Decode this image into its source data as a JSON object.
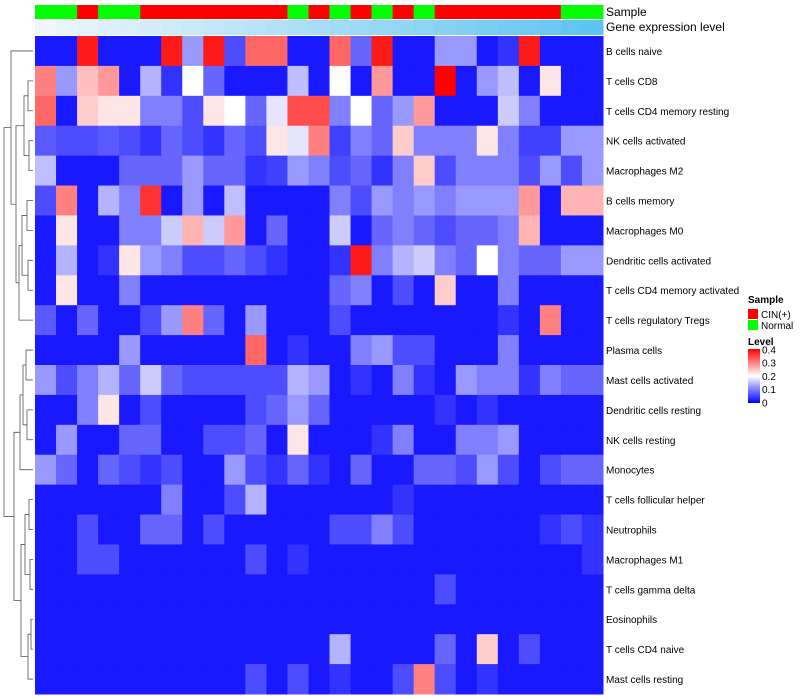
{
  "chart_data": {
    "type": "heatmap",
    "title": "",
    "track_labels": {
      "sample": "Sample",
      "expression": "Gene expression level"
    },
    "rows": [
      "B cells naive",
      "T cells CD8",
      "T cells CD4 memory resting",
      "NK cells activated",
      "Macrophages M2",
      "B cells memory",
      "Macrophages M0",
      "Dendritic cells activated",
      "T cells CD4 memory activated",
      "T cells regulatory  Tregs",
      "Plasma cells",
      "Mast cells activated",
      "Dendritic cells resting",
      "NK cells resting",
      "Monocytes",
      "T cells follicular helper",
      "Neutrophils",
      "Macrophages M1",
      "T cells gamma delta",
      "Eosinophils",
      "T cells CD4 naive",
      "Mast cells resting"
    ],
    "sample_groups": [
      "N",
      "N",
      "C",
      "N",
      "N",
      "C",
      "C",
      "C",
      "C",
      "C",
      "C",
      "C",
      "N",
      "C",
      "N",
      "C",
      "N",
      "C",
      "N",
      "C",
      "C",
      "C",
      "C",
      "C",
      "C",
      "N",
      "N"
    ],
    "expression_level": [
      0.0,
      0.04,
      0.08,
      0.12,
      0.15,
      0.19,
      0.23,
      0.27,
      0.31,
      0.35,
      0.38,
      0.42,
      0.46,
      0.5,
      0.54,
      0.58,
      0.62,
      0.65,
      0.69,
      0.73,
      0.77,
      0.81,
      0.85,
      0.88,
      0.92,
      0.96,
      1.0
    ],
    "values": [
      [
        0.02,
        0.02,
        0.38,
        0.02,
        0.02,
        0.02,
        0.38,
        0.12,
        0.38,
        0.06,
        0.32,
        0.32,
        0.02,
        0.02,
        0.32,
        0.08,
        0.38,
        0.02,
        0.02,
        0.12,
        0.12,
        0.02,
        0.04,
        0.38,
        0.02,
        0.02,
        0.02
      ],
      [
        0.3,
        0.12,
        0.25,
        0.28,
        0.02,
        0.14,
        0.04,
        0.2,
        0.08,
        0.02,
        0.02,
        0.02,
        0.15,
        0.02,
        0.2,
        0.02,
        0.28,
        0.02,
        0.02,
        0.4,
        0.02,
        0.12,
        0.15,
        0.02,
        0.22,
        0.02,
        0.02
      ],
      [
        0.32,
        0.02,
        0.24,
        0.22,
        0.22,
        0.1,
        0.1,
        0.06,
        0.22,
        0.2,
        0.08,
        0.18,
        0.34,
        0.34,
        0.1,
        0.2,
        0.08,
        0.12,
        0.28,
        0.02,
        0.02,
        0.02,
        0.16,
        0.1,
        0.02,
        0.02,
        0.02
      ],
      [
        0.07,
        0.06,
        0.06,
        0.07,
        0.06,
        0.04,
        0.08,
        0.06,
        0.04,
        0.08,
        0.06,
        0.22,
        0.18,
        0.3,
        0.05,
        0.1,
        0.08,
        0.24,
        0.1,
        0.1,
        0.1,
        0.22,
        0.1,
        0.05,
        0.05,
        0.12,
        0.12
      ],
      [
        0.15,
        0.02,
        0.02,
        0.02,
        0.08,
        0.08,
        0.08,
        0.12,
        0.08,
        0.08,
        0.04,
        0.05,
        0.12,
        0.1,
        0.06,
        0.08,
        0.04,
        0.1,
        0.24,
        0.06,
        0.1,
        0.1,
        0.1,
        0.06,
        0.12,
        0.06,
        0.12
      ],
      [
        0.06,
        0.3,
        0.02,
        0.14,
        0.1,
        0.36,
        0.02,
        0.12,
        0.02,
        0.15,
        0.02,
        0.02,
        0.02,
        0.02,
        0.1,
        0.06,
        0.12,
        0.1,
        0.12,
        0.1,
        0.12,
        0.12,
        0.12,
        0.28,
        0.02,
        0.26,
        0.26
      ],
      [
        0.02,
        0.22,
        0.02,
        0.02,
        0.1,
        0.1,
        0.16,
        0.26,
        0.16,
        0.28,
        0.02,
        0.08,
        0.02,
        0.02,
        0.16,
        0.02,
        0.08,
        0.1,
        0.08,
        0.06,
        0.08,
        0.08,
        0.1,
        0.26,
        0.02,
        0.02,
        0.02
      ],
      [
        0.02,
        0.14,
        0.02,
        0.04,
        0.22,
        0.12,
        0.1,
        0.06,
        0.06,
        0.08,
        0.06,
        0.04,
        0.02,
        0.02,
        0.04,
        0.38,
        0.1,
        0.14,
        0.16,
        0.1,
        0.08,
        0.2,
        0.1,
        0.08,
        0.08,
        0.12,
        0.12
      ],
      [
        0.02,
        0.22,
        0.02,
        0.02,
        0.1,
        0.02,
        0.02,
        0.02,
        0.02,
        0.02,
        0.02,
        0.02,
        0.02,
        0.02,
        0.08,
        0.1,
        0.02,
        0.06,
        0.02,
        0.24,
        0.02,
        0.02,
        0.1,
        0.02,
        0.02,
        0.02,
        0.02
      ],
      [
        0.07,
        0.02,
        0.08,
        0.02,
        0.02,
        0.06,
        0.12,
        0.3,
        0.08,
        0.02,
        0.12,
        0.02,
        0.02,
        0.02,
        0.06,
        0.02,
        0.02,
        0.02,
        0.02,
        0.02,
        0.02,
        0.02,
        0.04,
        0.02,
        0.3,
        0.02,
        0.02
      ],
      [
        0.02,
        0.02,
        0.02,
        0.02,
        0.12,
        0.02,
        0.02,
        0.02,
        0.02,
        0.02,
        0.32,
        0.02,
        0.04,
        0.02,
        0.02,
        0.1,
        0.12,
        0.06,
        0.06,
        0.02,
        0.02,
        0.02,
        0.1,
        0.02,
        0.02,
        0.02,
        0.02
      ],
      [
        0.12,
        0.06,
        0.1,
        0.14,
        0.08,
        0.16,
        0.08,
        0.06,
        0.06,
        0.06,
        0.06,
        0.06,
        0.14,
        0.12,
        0.02,
        0.04,
        0.02,
        0.1,
        0.04,
        0.02,
        0.12,
        0.1,
        0.1,
        0.04,
        0.1,
        0.08,
        0.08
      ],
      [
        0.02,
        0.02,
        0.1,
        0.22,
        0.02,
        0.06,
        0.02,
        0.02,
        0.02,
        0.02,
        0.06,
        0.08,
        0.12,
        0.08,
        0.02,
        0.02,
        0.02,
        0.02,
        0.02,
        0.04,
        0.02,
        0.04,
        0.02,
        0.02,
        0.02,
        0.02,
        0.02
      ],
      [
        0.02,
        0.12,
        0.02,
        0.02,
        0.08,
        0.08,
        0.02,
        0.02,
        0.06,
        0.06,
        0.08,
        0.02,
        0.22,
        0.02,
        0.02,
        0.02,
        0.04,
        0.1,
        0.02,
        0.02,
        0.1,
        0.1,
        0.12,
        0.02,
        0.02,
        0.02,
        0.02
      ],
      [
        0.12,
        0.08,
        0.02,
        0.08,
        0.06,
        0.04,
        0.06,
        0.02,
        0.02,
        0.12,
        0.06,
        0.04,
        0.08,
        0.04,
        0.02,
        0.08,
        0.02,
        0.02,
        0.08,
        0.08,
        0.06,
        0.12,
        0.06,
        0.02,
        0.06,
        0.08,
        0.08
      ],
      [
        0.02,
        0.02,
        0.02,
        0.02,
        0.02,
        0.02,
        0.1,
        0.02,
        0.02,
        0.06,
        0.14,
        0.02,
        0.02,
        0.02,
        0.02,
        0.02,
        0.02,
        0.04,
        0.02,
        0.02,
        0.02,
        0.02,
        0.02,
        0.02,
        0.02,
        0.02,
        0.02
      ],
      [
        0.02,
        0.02,
        0.06,
        0.02,
        0.02,
        0.08,
        0.08,
        0.02,
        0.06,
        0.02,
        0.02,
        0.02,
        0.02,
        0.02,
        0.06,
        0.06,
        0.1,
        0.06,
        0.02,
        0.02,
        0.02,
        0.02,
        0.02,
        0.02,
        0.04,
        0.06,
        0.04
      ],
      [
        0.02,
        0.02,
        0.06,
        0.06,
        0.02,
        0.02,
        0.02,
        0.02,
        0.02,
        0.02,
        0.06,
        0.02,
        0.04,
        0.02,
        0.02,
        0.02,
        0.02,
        0.02,
        0.02,
        0.02,
        0.02,
        0.02,
        0.02,
        0.02,
        0.02,
        0.02,
        0.04
      ],
      [
        0.02,
        0.02,
        0.02,
        0.02,
        0.02,
        0.02,
        0.02,
        0.02,
        0.02,
        0.02,
        0.02,
        0.02,
        0.02,
        0.02,
        0.02,
        0.02,
        0.02,
        0.02,
        0.02,
        0.06,
        0.02,
        0.02,
        0.02,
        0.02,
        0.02,
        0.02,
        0.02
      ],
      [
        0.02,
        0.02,
        0.02,
        0.02,
        0.02,
        0.02,
        0.02,
        0.02,
        0.02,
        0.02,
        0.02,
        0.02,
        0.02,
        0.02,
        0.02,
        0.02,
        0.02,
        0.02,
        0.02,
        0.02,
        0.02,
        0.02,
        0.02,
        0.02,
        0.02,
        0.02,
        0.02
      ],
      [
        0.02,
        0.02,
        0.02,
        0.02,
        0.02,
        0.02,
        0.02,
        0.02,
        0.02,
        0.02,
        0.02,
        0.02,
        0.02,
        0.02,
        0.14,
        0.02,
        0.02,
        0.02,
        0.02,
        0.08,
        0.02,
        0.24,
        0.02,
        0.06,
        0.02,
        0.02,
        0.02
      ],
      [
        0.02,
        0.02,
        0.02,
        0.02,
        0.02,
        0.02,
        0.02,
        0.02,
        0.02,
        0.02,
        0.06,
        0.02,
        0.06,
        0.02,
        0.04,
        0.02,
        0.02,
        0.06,
        0.3,
        0.06,
        0.02,
        0.04,
        0.02,
        0.02,
        0.02,
        0.02,
        0.02
      ]
    ],
    "color_scale": {
      "min": 0,
      "mid": 0.2,
      "max": 0.4,
      "low": "#0000ff",
      "mid_color": "#ffffff",
      "high": "#ff0000"
    },
    "legend": {
      "sample_title": "Sample",
      "sample_items": [
        {
          "label": "CIN(+)",
          "color": "#ff0000"
        },
        {
          "label": "Normal",
          "color": "#00ff00"
        }
      ],
      "level_title": "Level",
      "level_ticks": [
        "0.4",
        "0.3",
        "0.2",
        "0.1",
        "0"
      ],
      "placement": "right"
    }
  }
}
